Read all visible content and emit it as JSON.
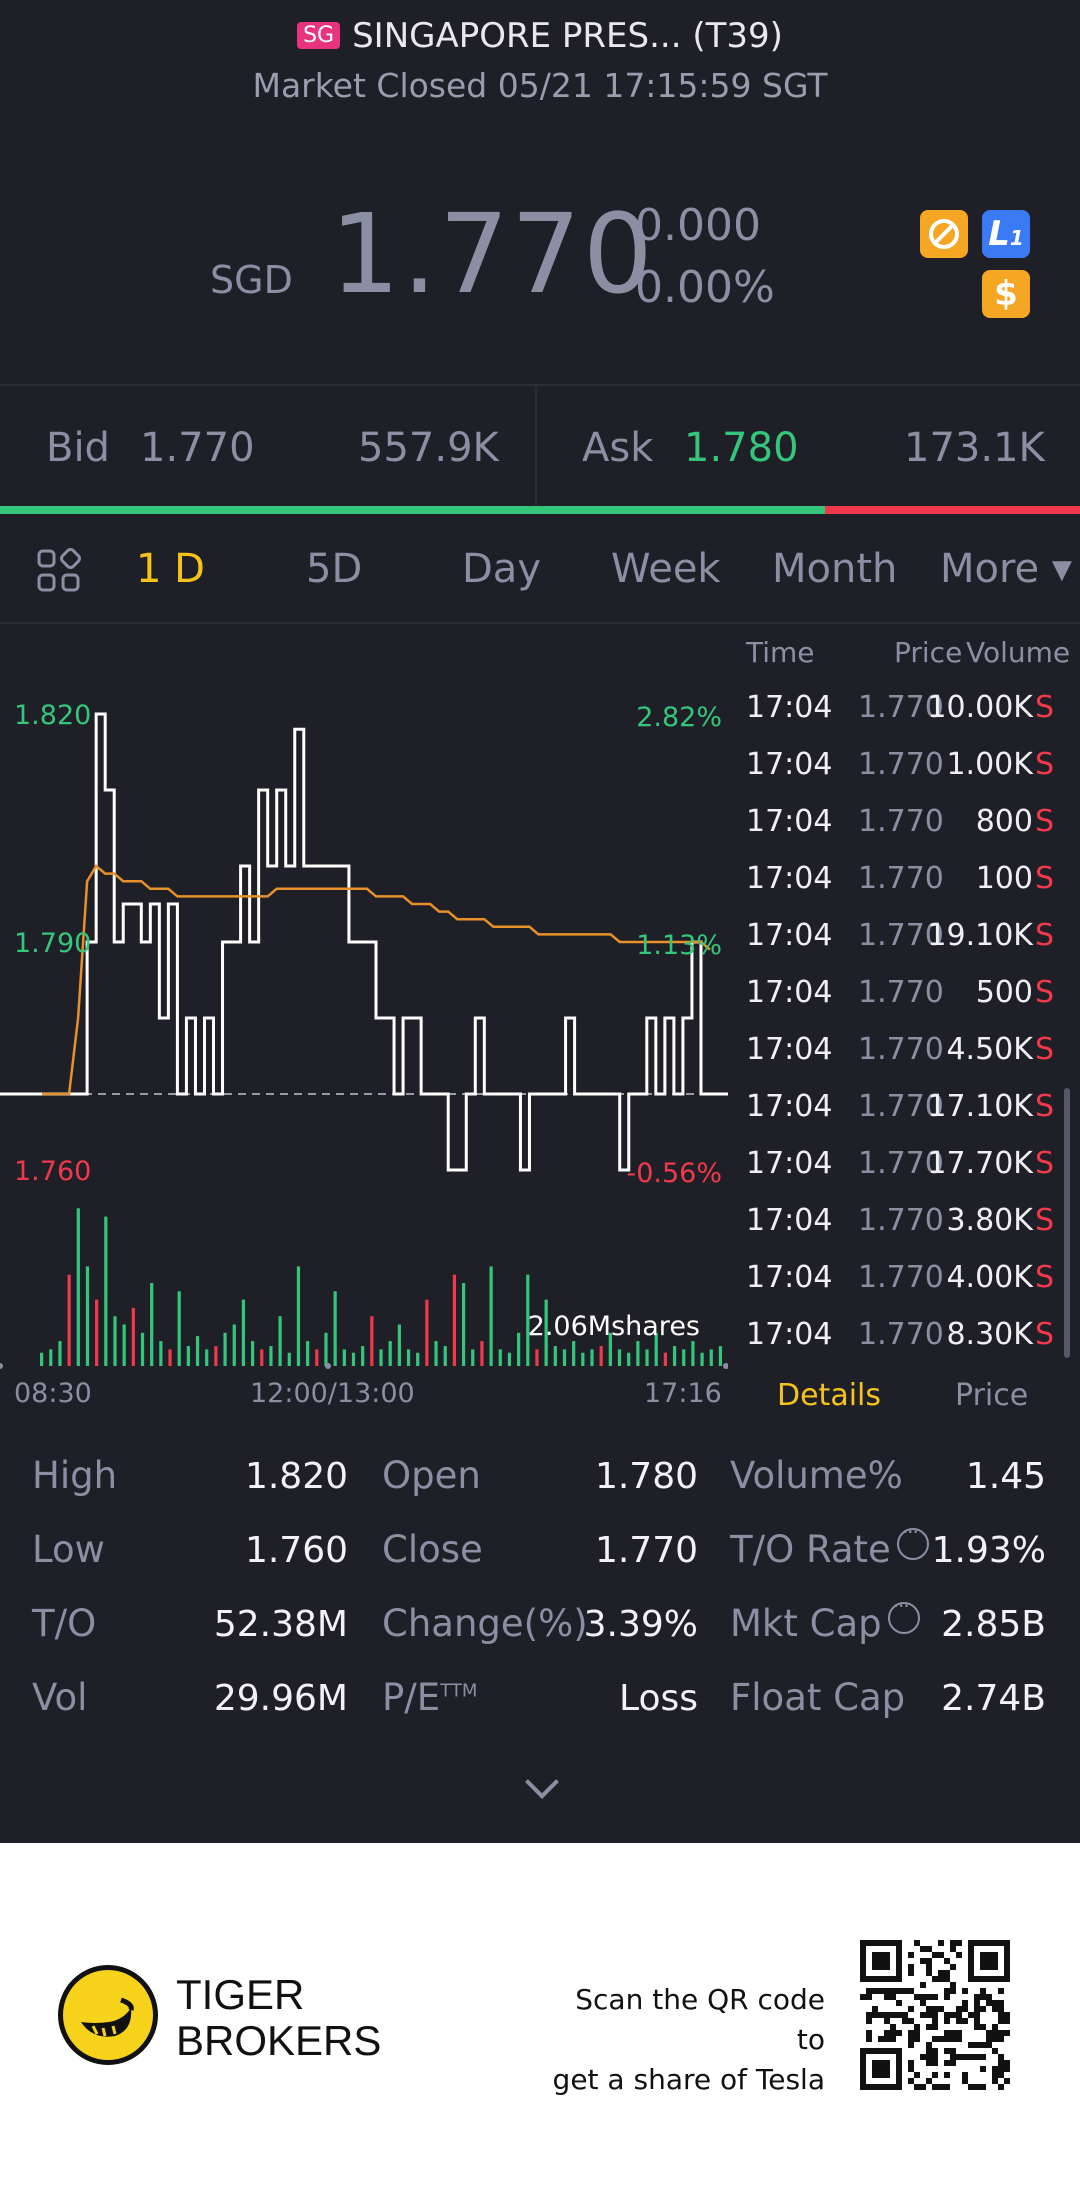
{
  "header": {
    "market_badge": "SG",
    "title": "SINGAPORE PRES... (T39)",
    "status": "Market Closed 05/21 17:15:59 SGT"
  },
  "quote": {
    "currency": "SGD",
    "price": "1.770",
    "change": "0.000",
    "change_pct": "0.00%",
    "level_badge": "L",
    "level_badge_sub": "1",
    "dollar_badge": "$"
  },
  "bid_ask": {
    "bid_label": "Bid",
    "bid_price": "1.770",
    "bid_size": "557.9K",
    "ask_label": "Ask",
    "ask_price": "1.780",
    "ask_size": "173.1K",
    "bid_fraction": 0.764
  },
  "tabs": [
    "1 D",
    "5D",
    "Day",
    "Week",
    "Month",
    "More"
  ],
  "active_tab": "1 D",
  "chart_data": {
    "type": "line",
    "y_left_labels": [
      "1.820",
      "1.790",
      "1.760"
    ],
    "y_right_labels": [
      "2.82%",
      "1.13%",
      "-0.56%"
    ],
    "x_labels": [
      "08:30",
      "12:00/13:00",
      "17:16"
    ],
    "prev_close": 1.77,
    "ylim": [
      1.76,
      1.82
    ],
    "volume_label": "2.06Mshares",
    "series": [
      {
        "name": "price",
        "values": [
          1.77,
          1.77,
          1.77,
          1.77,
          1.77,
          1.79,
          1.82,
          1.81,
          1.79,
          1.795,
          1.795,
          1.79,
          1.795,
          1.78,
          1.795,
          1.77,
          1.78,
          1.77,
          1.78,
          1.77,
          1.79,
          1.79,
          1.8,
          1.79,
          1.81,
          1.8,
          1.81,
          1.8,
          1.818,
          1.8,
          1.8,
          1.8,
          1.8,
          1.8,
          1.79,
          1.79,
          1.79,
          1.78,
          1.78,
          1.77,
          1.78,
          1.78,
          1.77,
          1.77,
          1.77,
          1.76,
          1.76,
          1.77,
          1.78,
          1.77,
          1.77,
          1.77,
          1.77,
          1.76,
          1.77,
          1.77,
          1.77,
          1.77,
          1.78,
          1.77,
          1.77,
          1.77,
          1.77,
          1.77,
          1.76,
          1.77,
          1.77,
          1.78,
          1.77,
          1.78,
          1.77,
          1.78,
          1.79,
          1.77,
          1.77
        ]
      },
      {
        "name": "avg",
        "values": [
          1.77,
          1.77,
          1.77,
          1.77,
          1.78,
          1.798,
          1.8,
          1.799,
          1.799,
          1.798,
          1.798,
          1.798,
          1.797,
          1.797,
          1.797,
          1.796,
          1.796,
          1.796,
          1.796,
          1.796,
          1.796,
          1.796,
          1.796,
          1.796,
          1.796,
          1.796,
          1.797,
          1.797,
          1.797,
          1.797,
          1.797,
          1.797,
          1.797,
          1.797,
          1.797,
          1.797,
          1.797,
          1.796,
          1.796,
          1.796,
          1.796,
          1.795,
          1.795,
          1.795,
          1.794,
          1.794,
          1.793,
          1.793,
          1.793,
          1.793,
          1.792,
          1.792,
          1.792,
          1.792,
          1.792,
          1.791,
          1.791,
          1.791,
          1.791,
          1.791,
          1.791,
          1.791,
          1.791,
          1.791,
          1.79,
          1.79,
          1.79,
          1.79,
          1.79,
          1.79,
          1.79,
          1.79,
          1.79,
          1.79,
          1.789
        ]
      }
    ],
    "volume": [
      8,
      10,
      15,
      55,
      95,
      60,
      40,
      90,
      30,
      25,
      35,
      20,
      50,
      15,
      10,
      45,
      12,
      18,
      10,
      12,
      20,
      25,
      40,
      15,
      10,
      12,
      30,
      8,
      60,
      15,
      10,
      20,
      45,
      10,
      8,
      12,
      30,
      10,
      15,
      25,
      10,
      8,
      40,
      15,
      12,
      55,
      50,
      10,
      15,
      60,
      10,
      8,
      20,
      55,
      10,
      40,
      12,
      10,
      15,
      8,
      10,
      12,
      20,
      10,
      8,
      15,
      10,
      20,
      8,
      12,
      10,
      15,
      8,
      10,
      12
    ],
    "volume_colors": [
      "g",
      "g",
      "g",
      "r",
      "g",
      "g",
      "r",
      "g",
      "g",
      "g",
      "r",
      "g",
      "g",
      "g",
      "r",
      "g",
      "g",
      "g",
      "g",
      "r",
      "g",
      "g",
      "g",
      "g",
      "r",
      "g",
      "g",
      "g",
      "g",
      "g",
      "r",
      "g",
      "g",
      "g",
      "g",
      "g",
      "r",
      "g",
      "g",
      "g",
      "g",
      "g",
      "r",
      "g",
      "g",
      "r",
      "g",
      "g",
      "r",
      "g",
      "g",
      "g",
      "g",
      "g",
      "r",
      "g",
      "g",
      "g",
      "g",
      "g",
      "g",
      "r",
      "g",
      "g",
      "g",
      "g",
      "g",
      "g",
      "r",
      "g",
      "g",
      "g",
      "g",
      "g",
      "g"
    ]
  },
  "ticks": {
    "headers": [
      "Time",
      "Price",
      "Volume"
    ],
    "rows": [
      {
        "time": "17:04",
        "price": "1.770",
        "volume": "10.00K",
        "side": "S"
      },
      {
        "time": "17:04",
        "price": "1.770",
        "volume": "1.00K",
        "side": "S"
      },
      {
        "time": "17:04",
        "price": "1.770",
        "volume": "800",
        "side": "S"
      },
      {
        "time": "17:04",
        "price": "1.770",
        "volume": "100",
        "side": "S"
      },
      {
        "time": "17:04",
        "price": "1.770",
        "volume": "19.10K",
        "side": "S"
      },
      {
        "time": "17:04",
        "price": "1.770",
        "volume": "500",
        "side": "S"
      },
      {
        "time": "17:04",
        "price": "1.770",
        "volume": "4.50K",
        "side": "S"
      },
      {
        "time": "17:04",
        "price": "1.770",
        "volume": "17.10K",
        "side": "S"
      },
      {
        "time": "17:04",
        "price": "1.770",
        "volume": "17.70K",
        "side": "S"
      },
      {
        "time": "17:04",
        "price": "1.770",
        "volume": "3.80K",
        "side": "S"
      },
      {
        "time": "17:04",
        "price": "1.770",
        "volume": "4.00K",
        "side": "S"
      },
      {
        "time": "17:04",
        "price": "1.770",
        "volume": "8.30K",
        "side": "S"
      }
    ],
    "tab_details": "Details",
    "tab_price": "Price"
  },
  "stats": {
    "col1": [
      {
        "label": "High",
        "value": "1.820"
      },
      {
        "label": "Low",
        "value": "1.760"
      },
      {
        "label": "T/O",
        "value": "52.38M"
      },
      {
        "label": "Vol",
        "value": "29.96M"
      }
    ],
    "col2": [
      {
        "label": "Open",
        "value": "1.780"
      },
      {
        "label": "Close",
        "value": "1.770"
      },
      {
        "label": "Change(%)",
        "value": "3.39%"
      },
      {
        "label": "P/E",
        "label_sup": "TTM",
        "value": "Loss"
      }
    ],
    "col3": [
      {
        "label": "Volume%",
        "value": "1.45"
      },
      {
        "label": "T/O Rate",
        "value": "1.93%"
      },
      {
        "label": "Mkt Cap",
        "value": "2.85B"
      },
      {
        "label": "Float Cap",
        "value": "2.74B"
      }
    ]
  },
  "footer": {
    "brand_line1": "TIGER",
    "brand_line2": "BROKERS",
    "scan_line1": "Scan the QR code to",
    "scan_line2": "get a share of Tesla"
  },
  "colors": {
    "up": "#34c77b",
    "down": "#f0394b",
    "accent": "#f5c319",
    "avg_line": "#e8902a",
    "background": "#1f1f27"
  }
}
